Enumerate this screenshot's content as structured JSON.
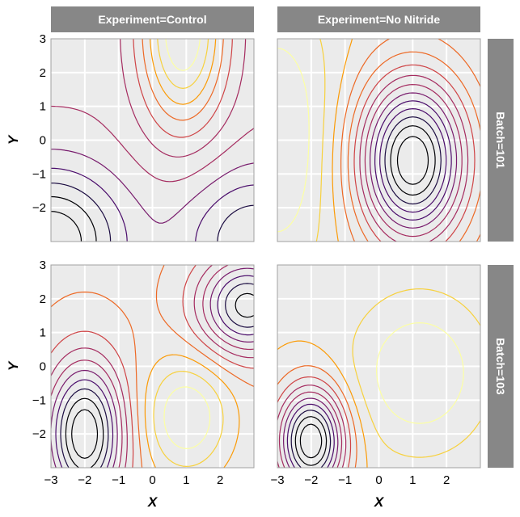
{
  "chart_data": {
    "type": "contour",
    "xlabel": "X",
    "ylabel": "Y",
    "xlim": [
      -3,
      3
    ],
    "ylim": [
      -3,
      3
    ],
    "x_ticks": [
      -3,
      -2,
      -1,
      0,
      1,
      2
    ],
    "y_ticks": [
      -2,
      -1,
      0,
      1,
      2,
      3
    ],
    "grid": true,
    "colormap": [
      "#000004",
      "#1b0c41",
      "#4a0c6b",
      "#781c6d",
      "#a52c60",
      "#cf4446",
      "#ed6925",
      "#fb9b06",
      "#f7d13d",
      "#fcffa4"
    ],
    "column_strips": [
      "Experiment=Control",
      "Experiment=No Nitride"
    ],
    "row_strips": [
      "Batch=101",
      "Batch=103"
    ],
    "panels": [
      {
        "experiment": "Control",
        "batch": "101",
        "row": 0,
        "col": 0,
        "show_x_ticks": false,
        "show_y_ticks": true,
        "peaks": [
          {
            "x": 0.9,
            "y": 3.2,
            "a": 1.0,
            "sx": 0.9,
            "sy": 2.0
          },
          {
            "x": -3.0,
            "y": -3.0,
            "a": -0.9,
            "sx": 1.5,
            "sy": 1.5
          },
          {
            "x": 3.0,
            "y": -3.0,
            "a": -0.6,
            "sx": 1.5,
            "sy": 1.5
          }
        ],
        "levels": 12
      },
      {
        "experiment": "No Nitride",
        "batch": "101",
        "row": 0,
        "col": 1,
        "show_x_ticks": false,
        "show_y_ticks": false,
        "peaks": [
          {
            "x": 1.0,
            "y": -0.6,
            "a": -1.6,
            "sx": 1.1,
            "sy": 1.7
          },
          {
            "x": -3.0,
            "y": 0.0,
            "a": 0.4,
            "sx": 1.2,
            "sy": 3.0
          }
        ],
        "levels": 14
      },
      {
        "experiment": "Control",
        "batch": "103",
        "row": 1,
        "col": 0,
        "show_x_ticks": true,
        "show_y_ticks": true,
        "peaks": [
          {
            "x": -2.0,
            "y": -2.0,
            "a": -1.2,
            "sx": 0.8,
            "sy": 1.5
          },
          {
            "x": 2.8,
            "y": 1.8,
            "a": -1.0,
            "sx": 1.0,
            "sy": 1.0
          },
          {
            "x": 1.0,
            "y": -1.5,
            "a": 0.5,
            "sx": 0.9,
            "sy": 1.2
          }
        ],
        "levels": 12
      },
      {
        "experiment": "No Nitride",
        "batch": "103",
        "row": 1,
        "col": 1,
        "show_x_ticks": true,
        "show_y_ticks": false,
        "peaks": [
          {
            "x": -2.0,
            "y": -2.2,
            "a": -1.8,
            "sx": 0.7,
            "sy": 1.1
          },
          {
            "x": 1.2,
            "y": -0.2,
            "a": 0.5,
            "sx": 1.4,
            "sy": 1.6
          }
        ],
        "levels": 12
      }
    ]
  }
}
